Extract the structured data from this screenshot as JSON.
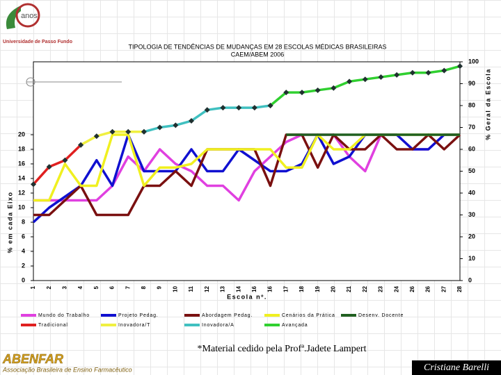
{
  "header": {
    "logo_text": "anos",
    "university": "Universidade de Passo Fundo"
  },
  "chart_data": {
    "type": "line",
    "title": "TIPOLOGIA DE TENDÊNCIAS DE MUDANÇAS EM 28 ESCOLAS MÉDICAS BRASILEIRAS",
    "subtitle": "CAEM/ABEM 2006",
    "xlabel": "Escola nº.",
    "ylabel": "% em cada Eixo",
    "y2label": "% Geral da Escola",
    "categories": [
      "1",
      "2",
      "3",
      "4",
      "5",
      "6",
      "7",
      "8",
      "9",
      "10",
      "11",
      "12",
      "13",
      "14",
      "16",
      "16",
      "17",
      "18",
      "19",
      "20",
      "21",
      "22",
      "23",
      "24",
      "26",
      "26",
      "27",
      "28"
    ],
    "ylim": [
      0,
      30
    ],
    "yticks": [
      0,
      2,
      4,
      6,
      8,
      10,
      12,
      14,
      16,
      18,
      20
    ],
    "y2lim": [
      0,
      100
    ],
    "y2ticks": [
      0,
      10,
      20,
      30,
      40,
      50,
      60,
      70,
      80,
      90,
      100
    ],
    "series": [
      {
        "name": "Mundo do Trabalho",
        "color": "#e040e0",
        "values": [
          11,
          11,
          11,
          11,
          11,
          13,
          17,
          15,
          18,
          16,
          15,
          13,
          13,
          11,
          15,
          17,
          19,
          20,
          20,
          20,
          17,
          15,
          20,
          20,
          18,
          18,
          20,
          20
        ]
      },
      {
        "name": "Projeto Pedag.",
        "color": "#1010d0",
        "values": [
          8,
          10,
          11.5,
          13,
          16.5,
          13,
          20,
          15,
          15,
          15,
          18,
          15,
          15,
          18,
          16.5,
          15,
          15,
          16,
          20,
          16,
          17,
          20,
          20,
          20,
          18,
          18,
          20,
          20
        ]
      },
      {
        "name": "Abordagem Pedag.",
        "color": "#7a1010",
        "values": [
          9,
          9,
          11,
          13,
          9,
          9,
          9,
          13,
          13,
          15,
          13,
          18,
          18,
          18,
          18,
          13,
          20,
          20,
          15.5,
          20,
          18,
          18,
          20,
          18,
          18,
          20,
          18,
          20
        ]
      },
      {
        "name": "Cenários da Prática",
        "color": "#f0f020",
        "values": [
          11,
          11,
          16,
          13,
          13,
          20,
          20,
          13,
          15.5,
          15.5,
          16,
          18,
          18,
          18,
          18,
          18,
          15.5,
          15.5,
          20,
          18,
          18,
          20,
          20,
          20,
          20,
          20,
          20,
          20
        ]
      },
      {
        "name": "Desenv. Docente",
        "color": "#206020",
        "values": [
          null,
          null,
          null,
          null,
          null,
          null,
          null,
          null,
          null,
          null,
          null,
          null,
          null,
          null,
          null,
          null,
          20,
          20,
          20,
          20,
          20,
          20,
          20,
          20,
          20,
          20,
          20,
          20
        ]
      },
      {
        "name": "Tradicional",
        "color": "#e02020",
        "axis": "y2",
        "values": [
          44,
          52,
          55,
          62,
          null,
          null,
          null,
          null,
          null,
          null,
          null,
          null,
          null,
          null,
          null,
          null,
          null,
          null,
          null,
          null,
          null,
          null,
          null,
          null,
          null,
          null,
          null,
          null
        ]
      },
      {
        "name": "Inovadora/T",
        "color": "#f0f040",
        "axis": "y2",
        "values": [
          null,
          null,
          null,
          62,
          66,
          68,
          68,
          68,
          null,
          null,
          null,
          null,
          null,
          null,
          null,
          null,
          null,
          null,
          null,
          null,
          null,
          null,
          null,
          null,
          null,
          null,
          null,
          null
        ]
      },
      {
        "name": "Inovadora/A",
        "color": "#40c0c0",
        "axis": "y2",
        "values": [
          null,
          null,
          null,
          null,
          null,
          null,
          null,
          68,
          70,
          71,
          73,
          78,
          79,
          79,
          79,
          80,
          null,
          null,
          null,
          null,
          null,
          null,
          null,
          null,
          null,
          null,
          null,
          null
        ]
      },
      {
        "name": "Avançada",
        "color": "#30d030",
        "axis": "y2",
        "values": [
          null,
          null,
          null,
          null,
          null,
          null,
          null,
          null,
          null,
          null,
          null,
          null,
          null,
          null,
          null,
          80,
          86,
          86,
          87,
          88,
          91,
          92,
          93,
          94,
          95,
          95,
          96,
          98
        ]
      }
    ]
  },
  "footer": {
    "note": "*Material cedido pela Profª.Jadete Lampert",
    "org": "ABENFAR",
    "org_full": "Associação Brasileira de Ensino Farmacêutico",
    "author": "Cristiane Barelli"
  }
}
